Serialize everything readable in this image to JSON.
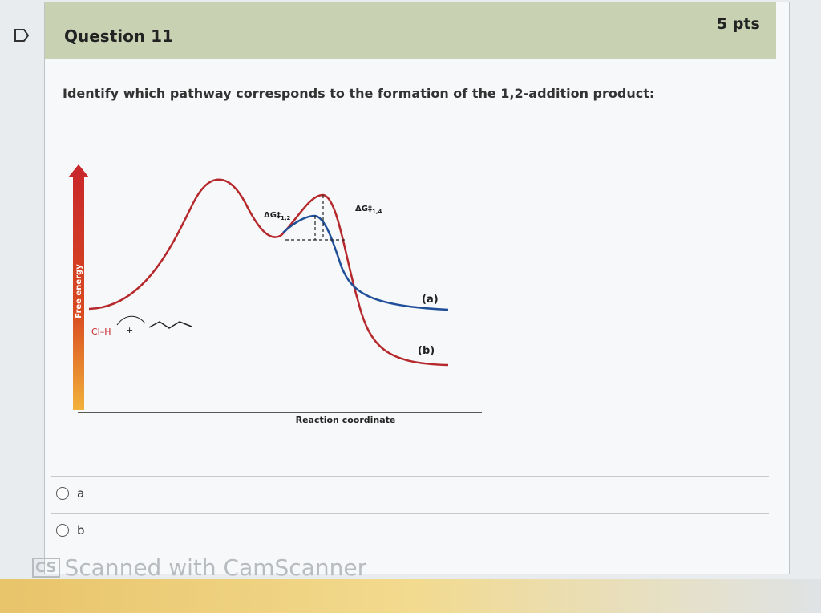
{
  "header": {
    "title": "Question 11",
    "points": "5 pts"
  },
  "question": {
    "text": "Identify which pathway corresponds to the formation of the 1,2-addition product:"
  },
  "diagram": {
    "y_axis_label": "Free energy",
    "x_axis_label": "Reaction coordinate",
    "reactant": "Cl–H",
    "plus": "+",
    "barrier_12": {
      "symbol": "ΔG‡",
      "subscript": "1,2"
    },
    "barrier_14": {
      "symbol": "ΔG‡",
      "subscript": "1,4"
    },
    "curve_a": "(a)",
    "curve_b": "(b)"
  },
  "options": [
    "a",
    "b"
  ],
  "watermark": {
    "logo": "CS",
    "text": "Scanned with CamScanner"
  }
}
